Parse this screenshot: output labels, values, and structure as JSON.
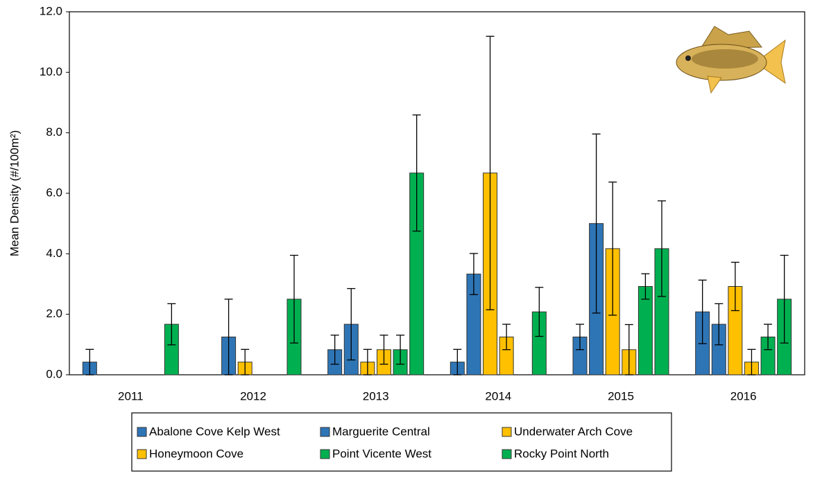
{
  "chart_data": {
    "type": "bar",
    "y_label": "Mean Density (#/100m²)",
    "categories": [
      "2011",
      "2012",
      "2013",
      "2014",
      "2015",
      "2016"
    ],
    "series": [
      {
        "name": "Abalone Cove Kelp West",
        "color": "#2e75b6",
        "values": [
          0.42,
          null,
          0.83,
          0.42,
          1.25,
          2.08
        ],
        "errors": [
          0.42,
          null,
          0.48,
          0.42,
          0.42,
          1.05
        ]
      },
      {
        "name": "Marguerite Central",
        "color": "#2e75b6",
        "values": [
          null,
          1.25,
          1.67,
          3.33,
          5.0,
          1.67
        ],
        "errors": [
          null,
          1.25,
          1.18,
          0.68,
          2.96,
          0.68
        ]
      },
      {
        "name": "Underwater Arch Cove",
        "color": "#ffc000",
        "values": [
          null,
          0.42,
          0.42,
          6.67,
          4.17,
          2.92
        ],
        "errors": [
          null,
          0.42,
          0.42,
          4.52,
          2.2,
          0.8
        ]
      },
      {
        "name": "Honeymoon Cove",
        "color": "#ffc000",
        "values": [
          null,
          null,
          0.83,
          1.25,
          0.83,
          0.42
        ],
        "errors": [
          null,
          null,
          0.48,
          0.42,
          0.83,
          0.42
        ]
      },
      {
        "name": "Point Vicente West",
        "color": "#00b050",
        "values": [
          null,
          null,
          0.83,
          null,
          2.92,
          1.25
        ],
        "errors": [
          null,
          null,
          0.48,
          null,
          0.42,
          0.42
        ]
      },
      {
        "name": "Rocky Point North",
        "color": "#00b050",
        "values": [
          1.67,
          2.5,
          6.67,
          2.08,
          4.17,
          2.5
        ],
        "errors": [
          0.68,
          1.45,
          1.92,
          0.81,
          1.58,
          1.45
        ]
      }
    ],
    "ylim": [
      0,
      12
    ],
    "yticks": [
      {
        "value": 0,
        "label": "0.0"
      },
      {
        "value": 2,
        "label": "2.0"
      },
      {
        "value": 4,
        "label": "4.0"
      },
      {
        "value": 6,
        "label": "6.0"
      },
      {
        "value": 8,
        "label": "8.0"
      },
      {
        "value": 10,
        "label": "10.0"
      },
      {
        "value": 12,
        "label": "12.0"
      }
    ],
    "grid": false
  }
}
